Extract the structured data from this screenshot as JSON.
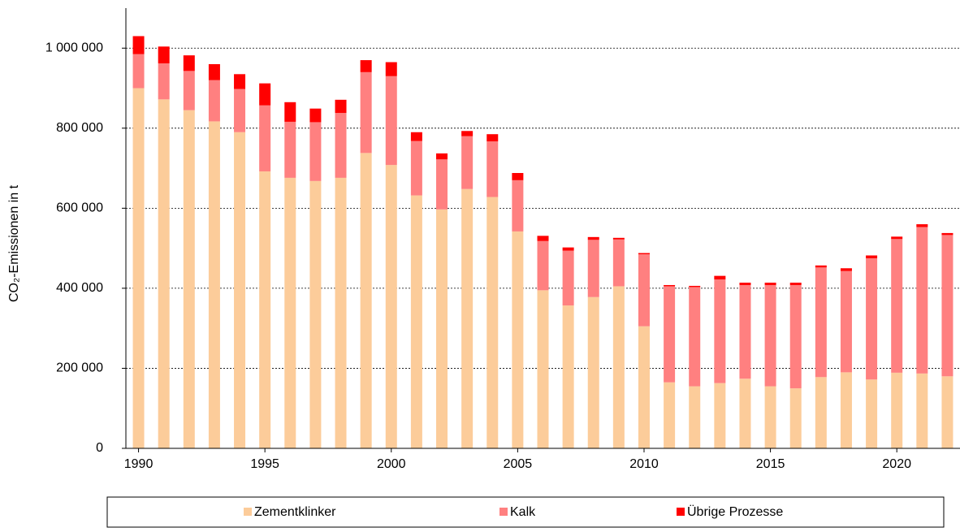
{
  "chart_data": {
    "type": "stacked-bar",
    "y_label": "CO₂-Emissionen in t",
    "x": [
      1990,
      1991,
      1992,
      1993,
      1994,
      1995,
      1996,
      1997,
      1998,
      1999,
      2000,
      2001,
      2002,
      2003,
      2004,
      2005,
      2006,
      2007,
      2008,
      2009,
      2010,
      2011,
      2012,
      2013,
      2014,
      2015,
      2016,
      2017,
      2018,
      2019,
      2020,
      2021,
      2022
    ],
    "xlim": [
      1989.5,
      2022.5
    ],
    "xticks": [
      1990,
      1995,
      2000,
      2005,
      2010,
      2015,
      2020
    ],
    "ylim": [
      0,
      1100000
    ],
    "yticks": [
      0,
      {
        "value": 200000,
        "label": "200 000"
      },
      {
        "value": 400000,
        "label": "400 000"
      },
      {
        "value": 600000,
        "label": "600 000"
      },
      {
        "value": 800000,
        "label": "800 000"
      },
      {
        "value": 1000000,
        "label": "1 000 000"
      }
    ],
    "grid": true,
    "legend": "bottom",
    "series": [
      {
        "name": "Zementklinker",
        "color": "#fccc9a",
        "values": [
          900000,
          872000,
          845000,
          817000,
          790000,
          692000,
          676000,
          668000,
          676000,
          738000,
          708000,
          632000,
          597000,
          648000,
          628000,
          542000,
          395000,
          357000,
          378000,
          405000,
          305000,
          165000,
          155000,
          163000,
          174000,
          155000,
          150000,
          178000,
          190000,
          172000,
          189000,
          187000,
          180000
        ]
      },
      {
        "name": "Kalk",
        "color": "#ff8080",
        "values": [
          85000,
          90000,
          98000,
          103000,
          108000,
          165000,
          140000,
          147000,
          162000,
          202000,
          222000,
          136000,
          125000,
          132000,
          139000,
          128000,
          123000,
          137000,
          143000,
          117000,
          180000,
          240000,
          248000,
          259000,
          234000,
          253000,
          258000,
          274000,
          253000,
          303000,
          334000,
          366000,
          353000
        ]
      },
      {
        "name": "Übrige Prozesse",
        "color": "#ff0000",
        "values": [
          45000,
          42000,
          39000,
          40000,
          37000,
          55000,
          49000,
          34000,
          33000,
          30000,
          35000,
          22000,
          15000,
          13000,
          18000,
          18000,
          13000,
          8000,
          7000,
          4000,
          3000,
          3000,
          3000,
          9000,
          6000,
          6000,
          6000,
          5000,
          7000,
          7000,
          6000,
          7000,
          5000
        ]
      }
    ]
  }
}
